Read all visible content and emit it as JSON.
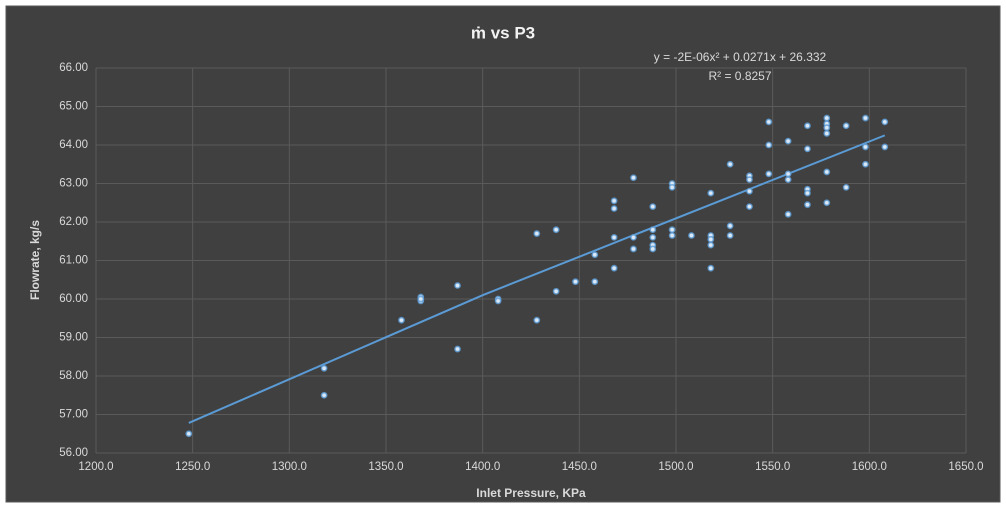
{
  "chart_data": {
    "type": "scatter",
    "title": "ṁ vs P3",
    "x_label": "Inlet Pressure, KPa",
    "y_label": "Flowrate, kg/s",
    "annotations": [
      "y = -2E-06x² + 0.0271x + 26.332",
      "R² = 0.8257"
    ],
    "color": "#5b9bd5",
    "grid": true,
    "xlim": [
      1200,
      1650
    ],
    "ylim": [
      56,
      66
    ],
    "xticks": [
      {
        "value": 1200,
        "label": "1200.0"
      },
      {
        "value": 1250,
        "label": "1250.0"
      },
      {
        "value": 1300,
        "label": "1300.0"
      },
      {
        "value": 1350,
        "label": "1350.0"
      },
      {
        "value": 1400,
        "label": "1400.0"
      },
      {
        "value": 1450,
        "label": "1450.0"
      },
      {
        "value": 1500,
        "label": "1500.0"
      },
      {
        "value": 1550,
        "label": "1550.0"
      },
      {
        "value": 1600,
        "label": "1600.0"
      },
      {
        "value": 1650,
        "label": "1650.0"
      }
    ],
    "yticks": [
      {
        "value": 56,
        "label": "56.00"
      },
      {
        "value": 57,
        "label": "57.00"
      },
      {
        "value": 58,
        "label": "58.00"
      },
      {
        "value": 59,
        "label": "59.00"
      },
      {
        "value": 60,
        "label": "60.00"
      },
      {
        "value": 61,
        "label": "61.00"
      },
      {
        "value": 62,
        "label": "62.00"
      },
      {
        "value": 63,
        "label": "63.00"
      },
      {
        "value": 64,
        "label": "64.00"
      },
      {
        "value": 65,
        "label": "65.00"
      },
      {
        "value": 66,
        "label": "66.00"
      }
    ],
    "x": [
      1248,
      1318,
      1318,
      1358,
      1368,
      1368,
      1368,
      1387,
      1387,
      1408,
      1408,
      1428,
      1428,
      1438,
      1438,
      1448,
      1458,
      1458,
      1468,
      1468,
      1468,
      1468,
      1478,
      1478,
      1478,
      1488,
      1488,
      1488,
      1488,
      1488,
      1498,
      1498,
      1498,
      1498,
      1508,
      1518,
      1518,
      1518,
      1518,
      1518,
      1528,
      1528,
      1528,
      1538,
      1538,
      1538,
      1538,
      1548,
      1548,
      1548,
      1558,
      1558,
      1558,
      1558,
      1568,
      1568,
      1568,
      1568,
      1568,
      1578,
      1578,
      1578,
      1578,
      1578,
      1578,
      1588,
      1588,
      1598,
      1598,
      1598,
      1608,
      1608
    ],
    "values": [
      56.5,
      58.2,
      57.5,
      59.45,
      60.05,
      59.95,
      60.0,
      60.35,
      58.7,
      60.0,
      59.95,
      61.7,
      59.45,
      61.8,
      60.2,
      60.45,
      60.45,
      61.15,
      61.6,
      62.55,
      62.35,
      60.8,
      61.6,
      61.3,
      63.15,
      62.4,
      61.8,
      61.6,
      61.4,
      61.3,
      63.0,
      62.9,
      61.8,
      61.65,
      61.65,
      62.75,
      61.65,
      61.4,
      60.8,
      61.55,
      63.5,
      61.9,
      61.65,
      63.2,
      63.1,
      62.8,
      62.4,
      64.6,
      64.0,
      63.25,
      64.1,
      63.25,
      63.1,
      62.2,
      64.5,
      63.9,
      62.85,
      62.75,
      62.45,
      64.7,
      64.55,
      64.45,
      64.3,
      63.3,
      62.5,
      64.5,
      62.9,
      64.7,
      63.95,
      63.5,
      64.6,
      63.95
    ],
    "trendline": {
      "x": [
        1248,
        1400,
        1608
      ],
      "values": [
        56.78,
        60.1,
        64.25
      ]
    }
  }
}
